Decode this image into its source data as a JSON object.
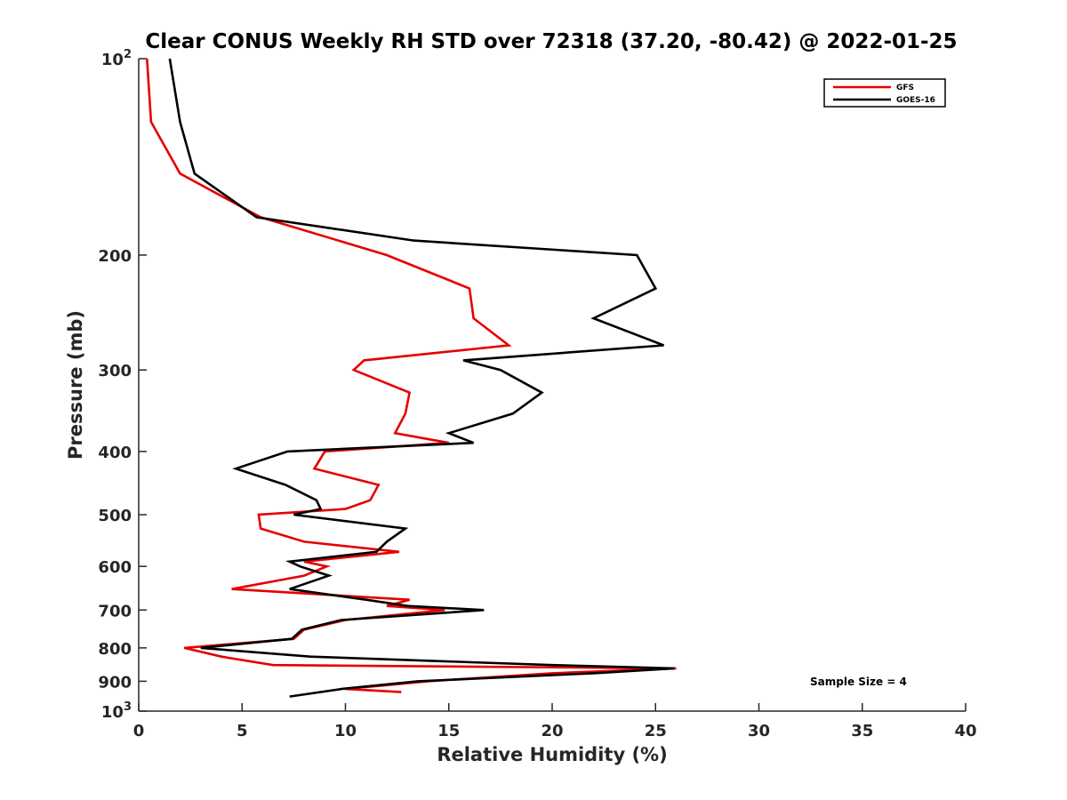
{
  "chart_data": {
    "type": "line",
    "title": "Clear CONUS Weekly RH STD over 72318 (37.20, -80.42) @ 2022-01-25",
    "xlabel": "Relative Humidity (%)",
    "ylabel": "Pressure (mb)",
    "xlim": [
      0,
      40
    ],
    "ylim": [
      100,
      1000
    ],
    "y_scale": "log",
    "y_reversed": true,
    "x_ticks": [
      0,
      5,
      10,
      15,
      20,
      25,
      30,
      35,
      40
    ],
    "y_ticks": [
      {
        "value": 100,
        "label": "10",
        "sup": "2"
      },
      {
        "value": 200,
        "label": "200",
        "sup": ""
      },
      {
        "value": 300,
        "label": "300",
        "sup": ""
      },
      {
        "value": 400,
        "label": "400",
        "sup": ""
      },
      {
        "value": 500,
        "label": "500",
        "sup": ""
      },
      {
        "value": 600,
        "label": "600",
        "sup": ""
      },
      {
        "value": 700,
        "label": "700",
        "sup": ""
      },
      {
        "value": 800,
        "label": "800",
        "sup": ""
      },
      {
        "value": 900,
        "label": "900",
        "sup": ""
      },
      {
        "value": 1000,
        "label": "10",
        "sup": "3"
      }
    ],
    "grid": false,
    "legend_position": "top-right",
    "annotation": "Sample Size = 4",
    "series": [
      {
        "name": "GFS",
        "color": "#e60000",
        "points": [
          [
            0.4,
            100
          ],
          [
            0.6,
            125
          ],
          [
            2.0,
            150
          ],
          [
            5.9,
            175
          ],
          [
            12.0,
            200
          ],
          [
            16.0,
            225
          ],
          [
            16.2,
            250
          ],
          [
            17.9,
            275
          ],
          [
            10.9,
            290
          ],
          [
            10.4,
            300
          ],
          [
            13.1,
            325
          ],
          [
            12.9,
            350
          ],
          [
            12.4,
            375
          ],
          [
            15.0,
            388
          ],
          [
            9.0,
            400
          ],
          [
            8.5,
            425
          ],
          [
            11.6,
            450
          ],
          [
            11.2,
            475
          ],
          [
            10.0,
            490
          ],
          [
            5.8,
            500
          ],
          [
            5.9,
            525
          ],
          [
            8.0,
            550
          ],
          [
            12.6,
            570
          ],
          [
            8.0,
            590
          ],
          [
            9.1,
            600
          ],
          [
            8.0,
            620
          ],
          [
            4.5,
            650
          ],
          [
            13.1,
            675
          ],
          [
            12.0,
            690
          ],
          [
            14.8,
            700
          ],
          [
            10.0,
            725
          ],
          [
            8.0,
            750
          ],
          [
            7.5,
            775
          ],
          [
            2.2,
            800
          ],
          [
            4.0,
            825
          ],
          [
            6.5,
            850
          ],
          [
            26.0,
            860
          ],
          [
            20.0,
            875
          ],
          [
            14.0,
            900
          ],
          [
            10.0,
            925
          ],
          [
            12.7,
            935
          ]
        ]
      },
      {
        "name": "GOES-16",
        "color": "#000000",
        "points": [
          [
            1.5,
            100
          ],
          [
            2.0,
            125
          ],
          [
            2.7,
            150
          ],
          [
            5.7,
            175
          ],
          [
            13.3,
            190
          ],
          [
            24.1,
            200
          ],
          [
            25.0,
            225
          ],
          [
            22.0,
            250
          ],
          [
            25.4,
            275
          ],
          [
            15.7,
            290
          ],
          [
            17.5,
            300
          ],
          [
            19.5,
            325
          ],
          [
            18.1,
            350
          ],
          [
            15.0,
            375
          ],
          [
            16.2,
            388
          ],
          [
            7.2,
            400
          ],
          [
            4.7,
            425
          ],
          [
            7.1,
            450
          ],
          [
            8.6,
            475
          ],
          [
            8.8,
            490
          ],
          [
            7.5,
            500
          ],
          [
            12.9,
            525
          ],
          [
            12.0,
            550
          ],
          [
            11.5,
            570
          ],
          [
            7.3,
            590
          ],
          [
            7.8,
            600
          ],
          [
            9.2,
            620
          ],
          [
            7.3,
            650
          ],
          [
            11.0,
            675
          ],
          [
            13.0,
            690
          ],
          [
            16.7,
            700
          ],
          [
            9.8,
            725
          ],
          [
            7.9,
            750
          ],
          [
            7.4,
            775
          ],
          [
            3.0,
            800
          ],
          [
            8.3,
            825
          ],
          [
            20.0,
            850
          ],
          [
            25.9,
            860
          ],
          [
            22.0,
            875
          ],
          [
            13.5,
            900
          ],
          [
            9.8,
            925
          ],
          [
            7.3,
            950
          ]
        ]
      }
    ]
  }
}
